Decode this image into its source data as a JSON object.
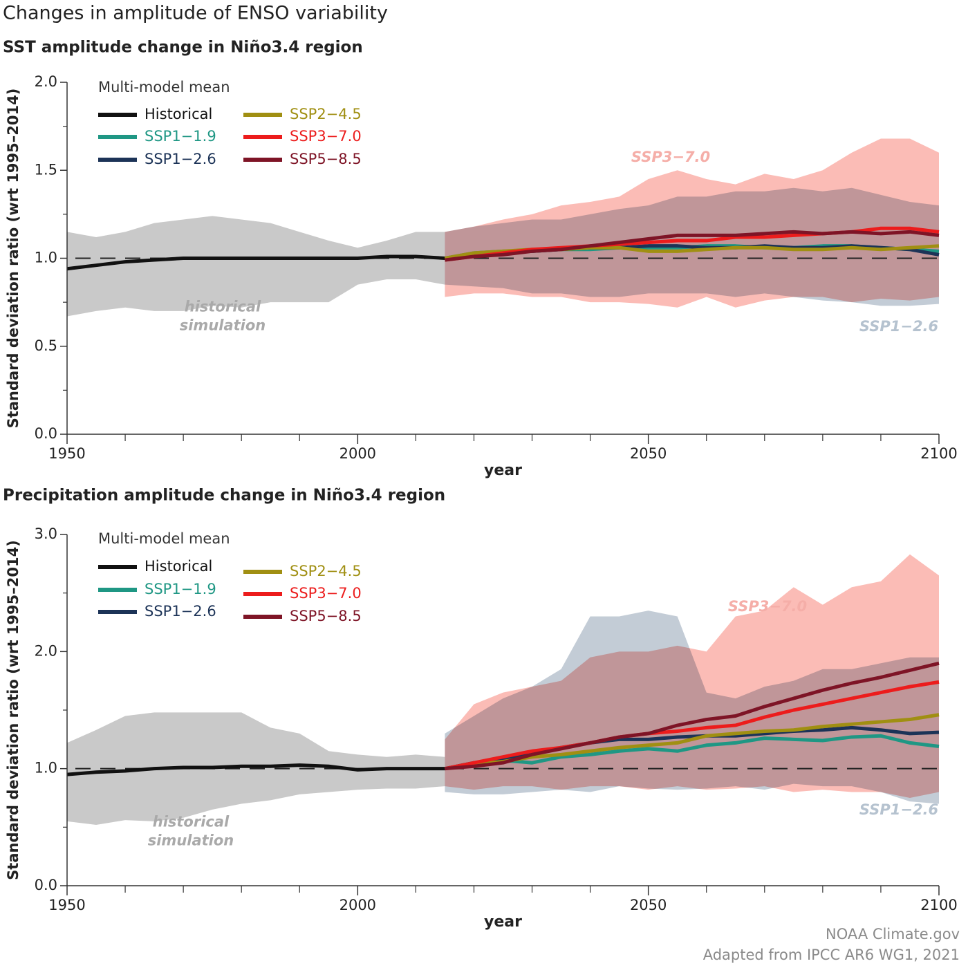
{
  "title": "Changes in amplitude of ENSO variability",
  "credits": [
    "NOAA Climate.gov",
    "Adapted from IPCC AR6 WG1, 2021"
  ],
  "chart_data": [
    {
      "type": "line",
      "title": "SST amplitude change in Niño3.4 region",
      "xlabel": "year",
      "ylabel": "Standard deviation ratio (wrt 1995–2014)",
      "xlim": [
        1950,
        2100
      ],
      "xticks": [
        1950,
        2000,
        2050,
        2100
      ],
      "xminorticks": [
        1960,
        1970,
        1980,
        1990,
        2010,
        2020,
        2030,
        2040,
        2060,
        2070,
        2080,
        2090
      ],
      "ylim": [
        0,
        2
      ],
      "yticks": [
        {
          "value": 0,
          "label": "0.0"
        },
        0.5,
        {
          "value": 1,
          "label": "1.0"
        },
        1.5,
        {
          "value": 2,
          "label": "2.0"
        }
      ],
      "yminorticks": [
        0.25,
        0.75,
        1.25,
        1.75
      ],
      "reference": 1,
      "legend_title": "Multi-model mean",
      "bands": [
        {
          "label": [
            "historical",
            "simulation"
          ],
          "color": "#c9c9c9",
          "text_color": "#a9a9a9",
          "x": [
            1950,
            1955,
            1960,
            1965,
            1970,
            1975,
            1980,
            1985,
            1990,
            1995,
            2000,
            2005,
            2010,
            2015
          ],
          "lower": [
            0.67,
            0.7,
            0.72,
            0.7,
            0.7,
            0.73,
            0.72,
            0.75,
            0.75,
            0.75,
            0.85,
            0.88,
            0.88,
            0.85
          ],
          "upper": [
            1.15,
            1.12,
            1.15,
            1.2,
            1.22,
            1.24,
            1.22,
            1.2,
            1.15,
            1.1,
            1.06,
            1.1,
            1.15,
            1.15
          ]
        },
        {
          "label": [
            "SSP3−7.0"
          ],
          "color": "#fbbcb6",
          "text_color": "#f5aea8",
          "x": [
            2015,
            2020,
            2025,
            2030,
            2035,
            2040,
            2045,
            2050,
            2055,
            2060,
            2065,
            2070,
            2075,
            2080,
            2085,
            2090,
            2095,
            2100
          ],
          "lower": [
            0.78,
            0.8,
            0.8,
            0.78,
            0.78,
            0.75,
            0.75,
            0.74,
            0.72,
            0.78,
            0.72,
            0.76,
            0.78,
            0.78,
            0.75,
            0.77,
            0.76,
            0.78
          ],
          "upper": [
            1.15,
            1.18,
            1.22,
            1.25,
            1.3,
            1.32,
            1.35,
            1.45,
            1.5,
            1.45,
            1.42,
            1.48,
            1.45,
            1.5,
            1.6,
            1.68,
            1.68,
            1.6
          ]
        },
        {
          "label": [
            "SSP1−2.6"
          ],
          "color": "#c3ccd6",
          "text_color": "#b5c2cf",
          "x": [
            2015,
            2020,
            2025,
            2030,
            2035,
            2040,
            2045,
            2050,
            2055,
            2060,
            2065,
            2070,
            2075,
            2080,
            2085,
            2090,
            2095,
            2100
          ],
          "lower": [
            0.85,
            0.84,
            0.83,
            0.8,
            0.8,
            0.78,
            0.78,
            0.8,
            0.8,
            0.8,
            0.78,
            0.8,
            0.78,
            0.76,
            0.75,
            0.73,
            0.73,
            0.74
          ],
          "upper": [
            1.15,
            1.18,
            1.2,
            1.22,
            1.22,
            1.25,
            1.28,
            1.3,
            1.35,
            1.35,
            1.38,
            1.38,
            1.4,
            1.38,
            1.4,
            1.36,
            1.32,
            1.3
          ]
        }
      ],
      "series": [
        {
          "name": "Historical",
          "color": "#111111",
          "x": [
            1950,
            1955,
            1960,
            1965,
            1970,
            1975,
            1980,
            1985,
            1990,
            1995,
            2000,
            2005,
            2010,
            2015
          ],
          "values": [
            0.94,
            0.96,
            0.98,
            0.99,
            1.0,
            1.0,
            1.0,
            1.0,
            1.0,
            1.0,
            1.0,
            1.01,
            1.01,
            1.0
          ]
        },
        {
          "name": "SSP1−1.9",
          "color": "#1f9784",
          "x": [
            2015,
            2020,
            2025,
            2030,
            2035,
            2040,
            2045,
            2050,
            2055,
            2060,
            2065,
            2070,
            2075,
            2080,
            2085,
            2090,
            2095,
            2100
          ],
          "values": [
            1.0,
            1.03,
            1.04,
            1.04,
            1.05,
            1.05,
            1.06,
            1.06,
            1.06,
            1.07,
            1.07,
            1.06,
            1.06,
            1.07,
            1.07,
            1.06,
            1.05,
            1.04
          ]
        },
        {
          "name": "SSP1−2.6",
          "color": "#1c3357",
          "x": [
            2015,
            2020,
            2025,
            2030,
            2035,
            2040,
            2045,
            2050,
            2055,
            2060,
            2065,
            2070,
            2075,
            2080,
            2085,
            2090,
            2095,
            2100
          ],
          "values": [
            1.0,
            1.02,
            1.03,
            1.04,
            1.05,
            1.06,
            1.06,
            1.07,
            1.07,
            1.06,
            1.06,
            1.07,
            1.06,
            1.06,
            1.07,
            1.06,
            1.05,
            1.02
          ]
        },
        {
          "name": "SSP2−4.5",
          "color": "#a08f12",
          "x": [
            2015,
            2020,
            2025,
            2030,
            2035,
            2040,
            2045,
            2050,
            2055,
            2060,
            2065,
            2070,
            2075,
            2080,
            2085,
            2090,
            2095,
            2100
          ],
          "values": [
            1.0,
            1.03,
            1.04,
            1.05,
            1.05,
            1.06,
            1.06,
            1.04,
            1.04,
            1.05,
            1.06,
            1.06,
            1.05,
            1.05,
            1.06,
            1.05,
            1.06,
            1.07
          ]
        },
        {
          "name": "SSP3−7.0",
          "color": "#ec1c1c",
          "x": [
            2015,
            2020,
            2025,
            2030,
            2035,
            2040,
            2045,
            2050,
            2055,
            2060,
            2065,
            2070,
            2075,
            2080,
            2085,
            2090,
            2095,
            2100
          ],
          "values": [
            0.99,
            1.01,
            1.03,
            1.05,
            1.06,
            1.07,
            1.08,
            1.09,
            1.1,
            1.1,
            1.12,
            1.12,
            1.13,
            1.14,
            1.15,
            1.17,
            1.17,
            1.15
          ]
        },
        {
          "name": "SSP5−8.5",
          "color": "#7e1426",
          "x": [
            2015,
            2020,
            2025,
            2030,
            2035,
            2040,
            2045,
            2050,
            2055,
            2060,
            2065,
            2070,
            2075,
            2080,
            2085,
            2090,
            2095,
            2100
          ],
          "values": [
            0.99,
            1.01,
            1.02,
            1.04,
            1.05,
            1.07,
            1.09,
            1.11,
            1.13,
            1.13,
            1.13,
            1.14,
            1.15,
            1.14,
            1.15,
            1.14,
            1.15,
            1.13
          ]
        }
      ]
    },
    {
      "type": "line",
      "title": "Precipitation amplitude change in Niño3.4 region",
      "xlabel": "year",
      "ylabel": "Standard deviation ratio (wrt 1995–2014)",
      "xlim": [
        1950,
        2100
      ],
      "xticks": [
        1950,
        2000,
        2050,
        2100
      ],
      "xminorticks": [
        1960,
        1970,
        1980,
        1990,
        2010,
        2020,
        2030,
        2040,
        2060,
        2070,
        2080,
        2090
      ],
      "ylim": [
        0,
        3
      ],
      "yticks": [
        {
          "value": 0,
          "label": "0.0"
        },
        {
          "value": 1,
          "label": "1.0"
        },
        {
          "value": 2,
          "label": "2.0"
        },
        {
          "value": 3,
          "label": "3.0"
        }
      ],
      "yminorticks": [
        0.5,
        1.5,
        2.5
      ],
      "reference": 1,
      "legend_title": "Multi-model mean",
      "bands": [
        {
          "label": [
            "historical",
            "simulation"
          ],
          "color": "#c9c9c9",
          "text_color": "#a9a9a9",
          "x": [
            1950,
            1955,
            1960,
            1965,
            1970,
            1975,
            1980,
            1985,
            1990,
            1995,
            2000,
            2005,
            2010,
            2015
          ],
          "lower": [
            0.55,
            0.52,
            0.56,
            0.55,
            0.58,
            0.65,
            0.7,
            0.73,
            0.78,
            0.8,
            0.82,
            0.83,
            0.83,
            0.85
          ],
          "upper": [
            1.22,
            1.33,
            1.45,
            1.48,
            1.48,
            1.48,
            1.48,
            1.35,
            1.3,
            1.15,
            1.12,
            1.1,
            1.12,
            1.1
          ]
        },
        {
          "label": [
            "SSP3−7.0"
          ],
          "color": "#fbbcb6",
          "text_color": "#f5aea8",
          "x": [
            2015,
            2020,
            2025,
            2030,
            2035,
            2040,
            2045,
            2050,
            2055,
            2060,
            2065,
            2070,
            2075,
            2080,
            2085,
            2090,
            2095,
            2100
          ],
          "lower": [
            0.85,
            0.82,
            0.85,
            0.85,
            0.82,
            0.85,
            0.85,
            0.82,
            0.85,
            0.82,
            0.83,
            0.85,
            0.8,
            0.82,
            0.8,
            0.8,
            0.75,
            0.8
          ],
          "upper": [
            1.25,
            1.55,
            1.65,
            1.7,
            1.75,
            1.95,
            2.0,
            2.0,
            2.05,
            2.0,
            2.3,
            2.35,
            2.55,
            2.4,
            2.55,
            2.6,
            2.83,
            2.65
          ]
        },
        {
          "label": [
            "SSP1−2.6"
          ],
          "color": "#c3ccd6",
          "text_color": "#b5c2cf",
          "x": [
            2015,
            2020,
            2025,
            2030,
            2035,
            2040,
            2045,
            2050,
            2055,
            2060,
            2065,
            2070,
            2075,
            2080,
            2085,
            2090,
            2095,
            2100
          ],
          "lower": [
            0.8,
            0.78,
            0.78,
            0.8,
            0.82,
            0.8,
            0.85,
            0.83,
            0.82,
            0.83,
            0.85,
            0.82,
            0.87,
            0.85,
            0.85,
            0.8,
            0.72,
            0.7
          ],
          "upper": [
            1.3,
            1.45,
            1.6,
            1.7,
            1.85,
            2.3,
            2.3,
            2.35,
            2.3,
            1.65,
            1.6,
            1.7,
            1.75,
            1.85,
            1.85,
            1.9,
            1.95,
            1.95
          ]
        }
      ],
      "series": [
        {
          "name": "Historical",
          "color": "#111111",
          "x": [
            1950,
            1955,
            1960,
            1965,
            1970,
            1975,
            1980,
            1985,
            1990,
            1995,
            2000,
            2005,
            2010,
            2015
          ],
          "values": [
            0.95,
            0.97,
            0.98,
            1.0,
            1.01,
            1.01,
            1.02,
            1.02,
            1.03,
            1.02,
            0.99,
            1.0,
            1.0,
            1.0
          ]
        },
        {
          "name": "SSP1−1.9",
          "color": "#1f9784",
          "x": [
            2015,
            2020,
            2025,
            2030,
            2035,
            2040,
            2045,
            2050,
            2055,
            2060,
            2065,
            2070,
            2075,
            2080,
            2085,
            2090,
            2095,
            2100
          ],
          "values": [
            1.0,
            1.05,
            1.07,
            1.05,
            1.1,
            1.12,
            1.15,
            1.17,
            1.15,
            1.2,
            1.22,
            1.26,
            1.25,
            1.24,
            1.27,
            1.28,
            1.22,
            1.19
          ]
        },
        {
          "name": "SSP1−2.6",
          "color": "#1c3357",
          "x": [
            2015,
            2020,
            2025,
            2030,
            2035,
            2040,
            2045,
            2050,
            2055,
            2060,
            2065,
            2070,
            2075,
            2080,
            2085,
            2090,
            2095,
            2100
          ],
          "values": [
            1.0,
            1.05,
            1.08,
            1.12,
            1.18,
            1.22,
            1.25,
            1.25,
            1.27,
            1.28,
            1.28,
            1.3,
            1.32,
            1.33,
            1.35,
            1.33,
            1.3,
            1.31
          ]
        },
        {
          "name": "SSP2−4.5",
          "color": "#a08f12",
          "x": [
            2015,
            2020,
            2025,
            2030,
            2035,
            2040,
            2045,
            2050,
            2055,
            2060,
            2065,
            2070,
            2075,
            2080,
            2085,
            2090,
            2095,
            2100
          ],
          "values": [
            1.0,
            1.04,
            1.06,
            1.1,
            1.12,
            1.15,
            1.18,
            1.2,
            1.22,
            1.28,
            1.3,
            1.32,
            1.33,
            1.36,
            1.38,
            1.4,
            1.42,
            1.46
          ]
        },
        {
          "name": "SSP3−7.0",
          "color": "#ec1c1c",
          "x": [
            2015,
            2020,
            2025,
            2030,
            2035,
            2040,
            2045,
            2050,
            2055,
            2060,
            2065,
            2070,
            2075,
            2080,
            2085,
            2090,
            2095,
            2100
          ],
          "values": [
            1.0,
            1.05,
            1.1,
            1.15,
            1.18,
            1.22,
            1.27,
            1.3,
            1.32,
            1.35,
            1.37,
            1.44,
            1.5,
            1.55,
            1.6,
            1.65,
            1.7,
            1.74
          ]
        },
        {
          "name": "SSP5−8.5",
          "color": "#7e1426",
          "x": [
            2015,
            2020,
            2025,
            2030,
            2035,
            2040,
            2045,
            2050,
            2055,
            2060,
            2065,
            2070,
            2075,
            2080,
            2085,
            2090,
            2095,
            2100
          ],
          "values": [
            1.0,
            1.02,
            1.05,
            1.12,
            1.17,
            1.22,
            1.27,
            1.3,
            1.37,
            1.42,
            1.45,
            1.53,
            1.6,
            1.67,
            1.73,
            1.78,
            1.84,
            1.9
          ]
        }
      ]
    }
  ]
}
